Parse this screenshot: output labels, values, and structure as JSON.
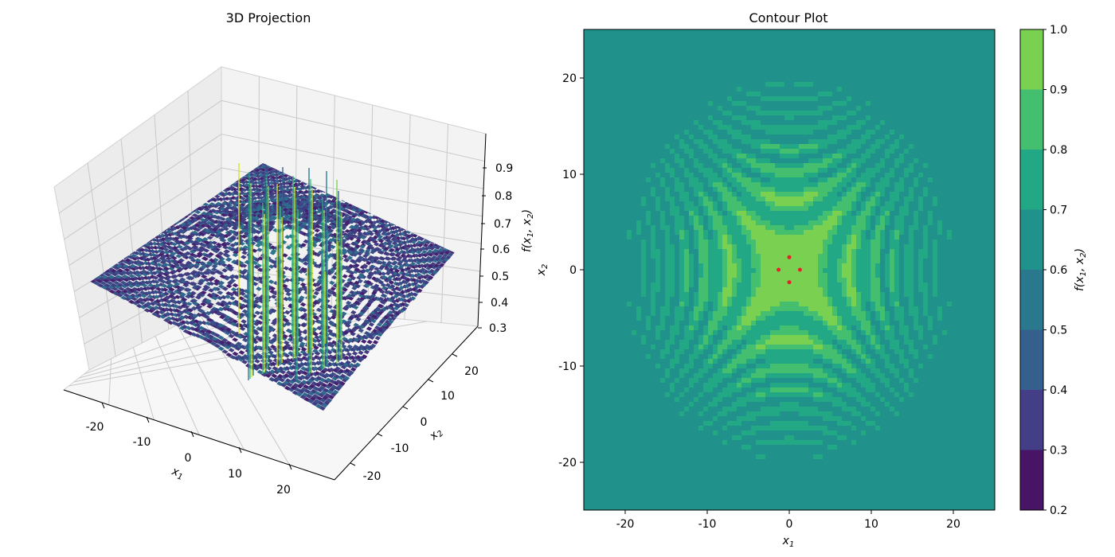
{
  "figure": {
    "left_title": "3D Projection",
    "right_title": "Contour Plot"
  },
  "chart_data": [
    {
      "type": "surface",
      "title": "3D Projection",
      "xlabel": "x1",
      "ylabel": "x2",
      "zlabel": "f(x1, x2)",
      "xticks": [
        -20,
        -10,
        0,
        10,
        20
      ],
      "yticks": [
        -20,
        -10,
        0,
        10,
        20
      ],
      "zticks": [
        0.3,
        0.4,
        0.5,
        0.6,
        0.7,
        0.8,
        0.9
      ],
      "xlim": [
        -25,
        25
      ],
      "ylim": [
        -25,
        25
      ],
      "zlim": [
        0.3,
        1.0
      ],
      "colormap": "viridis",
      "grid": true
    },
    {
      "type": "heatmap",
      "title": "Contour Plot",
      "xlabel": "x1",
      "ylabel": "x2",
      "xticks": [
        -20,
        -10,
        0,
        10,
        20
      ],
      "yticks": [
        -20,
        -10,
        0,
        10,
        20
      ],
      "xlim": [
        -25,
        25
      ],
      "ylim": [
        -25,
        25
      ],
      "colorbar": {
        "label": "f(x1, x2)",
        "levels": [
          0.2,
          0.3,
          0.4,
          0.5,
          0.6,
          0.7,
          0.8,
          0.9,
          1.0
        ],
        "colors": [
          "#471466",
          "#433e85",
          "#355f8d",
          "#2a788e",
          "#21918c",
          "#22a884",
          "#44bf70",
          "#7ad151",
          "#d9e021"
        ]
      },
      "markers": {
        "color": "#e8202a",
        "points": [
          [
            0,
            1.3
          ],
          [
            -1.3,
            0
          ],
          [
            1.3,
            0
          ],
          [
            0,
            -1.3
          ]
        ]
      }
    }
  ]
}
